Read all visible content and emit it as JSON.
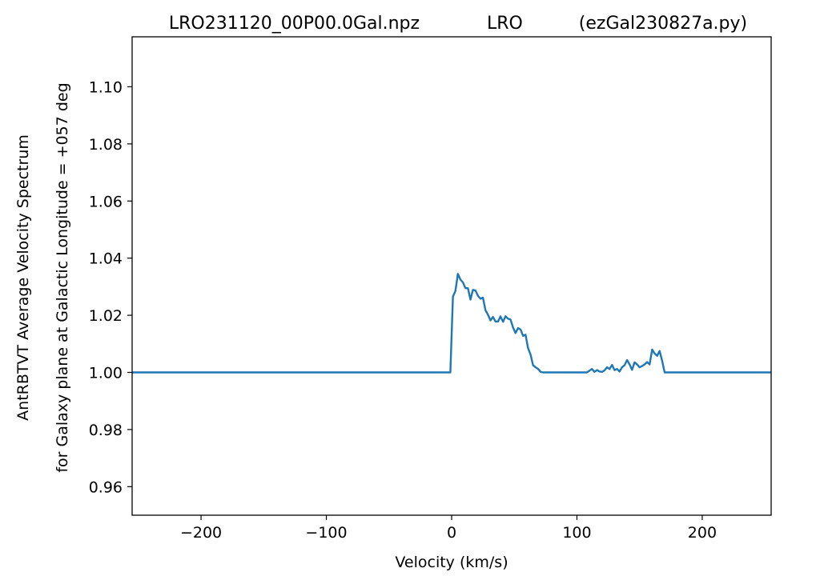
{
  "chart_data": {
    "type": "line",
    "title": "LRO231120_00P00.0Gal.npz            LRO          (ezGal230827a.py)",
    "xlabel": "Velocity (km/s)",
    "ylabel_line1": "AntRBTVT Average Velocity Spectrum",
    "ylabel_line2": "for Galaxy plane at Galactic Longitude = +057 deg",
    "xlim": [
      -255,
      255
    ],
    "ylim": [
      0.95,
      1.1175
    ],
    "xticks": [
      -200,
      -100,
      0,
      100,
      200
    ],
    "xtick_labels": [
      "−200",
      "−100",
      "0",
      "100",
      "200"
    ],
    "yticks": [
      0.96,
      0.98,
      1.0,
      1.02,
      1.04,
      1.06,
      1.08,
      1.1
    ],
    "ytick_labels": [
      "0.96",
      "0.98",
      "1.00",
      "1.02",
      "1.04",
      "1.06",
      "1.08",
      "1.10"
    ],
    "grid": false,
    "series": [
      {
        "color": "#1f77b4",
        "x": [
          -255,
          -1,
          1,
          3,
          5,
          7,
          9,
          11,
          13,
          15,
          17,
          19,
          21,
          23,
          25,
          27,
          29,
          31,
          33,
          35,
          37,
          39,
          41,
          43,
          45,
          47,
          49,
          51,
          53,
          55,
          57,
          59,
          61,
          63,
          65,
          67,
          69,
          71,
          73,
          75,
          108,
          110,
          112,
          114,
          116,
          118,
          120,
          122,
          124,
          126,
          128,
          130,
          132,
          134,
          136,
          138,
          140,
          142,
          144,
          146,
          148,
          150,
          152,
          154,
          156,
          158,
          160,
          162,
          164,
          166,
          168,
          170,
          172,
          174,
          176,
          178,
          255
        ],
        "y": [
          1.0,
          1.0,
          1.0265,
          1.0285,
          1.0345,
          1.0325,
          1.0315,
          1.0295,
          1.0295,
          1.0255,
          1.0289,
          1.0287,
          1.0268,
          1.0258,
          1.0262,
          1.0218,
          1.0202,
          1.0182,
          1.0194,
          1.0178,
          1.0178,
          1.0196,
          1.0177,
          1.0197,
          1.0188,
          1.0185,
          1.0157,
          1.0138,
          1.0155,
          1.015,
          1.0128,
          1.0132,
          1.0085,
          1.0062,
          1.0025,
          1.0018,
          1.0012,
          1.0002,
          1.0,
          1.0,
          1.0,
          1.0006,
          1.0012,
          1.0002,
          1.0008,
          1.0003,
          1.0002,
          1.0007,
          1.0018,
          1.0012,
          1.0026,
          1.0008,
          1.0012,
          1.0003,
          1.0018,
          1.0025,
          1.0043,
          1.0028,
          1.0009,
          1.0035,
          1.0028,
          1.0018,
          1.0022,
          1.0028,
          1.0036,
          1.0028,
          1.008,
          1.0066,
          1.0058,
          1.0075,
          1.004,
          1.0,
          1.0,
          1.0,
          1.0,
          1.0,
          1.0
        ]
      }
    ]
  }
}
